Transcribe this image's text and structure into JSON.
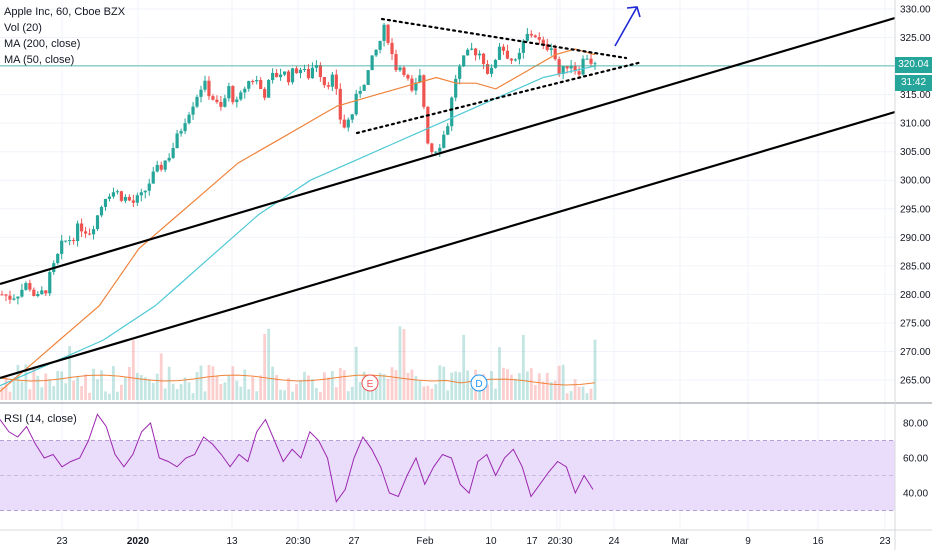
{
  "legend": {
    "title": "Apple Inc, 60, Cboe BZX",
    "vol": "Vol (20)",
    "ma200": "MA (200, close)",
    "ma50": "MA (50, close)",
    "rsi": "RSI (14, close)"
  },
  "colors": {
    "up": "#26a69a",
    "down": "#ef5350",
    "ma50": "#f0833a",
    "ma200": "#4ec9d4",
    "rsi": "#9c27b0",
    "rsi_band": "#e9ddfb",
    "price_line": "#26a69a",
    "trendline": "#000000",
    "arrow": "#1f29d6"
  },
  "price_badge": "320.04",
  "time_badge": "31:42",
  "events": [
    {
      "label": "E",
      "color": "#ef5350"
    },
    {
      "label": "D",
      "color": "#2196f3"
    }
  ],
  "chart_data": [
    {
      "type": "candlestick",
      "title": "Apple Inc, 60, Cboe BZX",
      "x_ticks": [
        "23",
        "2020",
        "13",
        "20:30",
        "27",
        "Feb",
        "10",
        "17",
        "20:30",
        "24",
        "Mar",
        "9",
        "16",
        "23"
      ],
      "y_ticks": [
        330,
        325,
        320,
        315,
        310,
        305,
        300,
        295,
        290,
        285,
        280,
        275,
        270,
        265
      ],
      "ylim": [
        262,
        331
      ],
      "last_price": 320.04,
      "close_approx": [
        280,
        279.5,
        280.5,
        282,
        279,
        281,
        285,
        289,
        290,
        292,
        291,
        294,
        298,
        298,
        297,
        296,
        297,
        300,
        302,
        304,
        307,
        311,
        314,
        317,
        315,
        312,
        316,
        313,
        317,
        318,
        315,
        318,
        319,
        318,
        320,
        318,
        321,
        317,
        318,
        309,
        311,
        316,
        319,
        323,
        327,
        320,
        320,
        315,
        318,
        305,
        306,
        309,
        318,
        321,
        323,
        322,
        318,
        324,
        322,
        320,
        325,
        326,
        323,
        324,
        318,
        321,
        319,
        322,
        320
      ],
      "ma50_approx": [
        263,
        266,
        269,
        272,
        275,
        278,
        283,
        288,
        291,
        294,
        297,
        300,
        303,
        305,
        307,
        309,
        311,
        313,
        314,
        315,
        316,
        317,
        318,
        317,
        317,
        316,
        318,
        320,
        322,
        323,
        322
      ],
      "ma200_approx": [
        264,
        266,
        268,
        270,
        272,
        275,
        278,
        282,
        286,
        290,
        294,
        297,
        300,
        302,
        304,
        306,
        308,
        310,
        312,
        314,
        316,
        318,
        319,
        320
      ],
      "annotations": [
        "Symmetrical triangle",
        "Rising channel",
        "Upward arrow"
      ]
    },
    {
      "type": "line",
      "title": "RSI (14, close)",
      "y_ticks": [
        80,
        60,
        40
      ],
      "band": [
        30,
        70
      ],
      "values_approx": [
        82,
        75,
        72,
        78,
        68,
        60,
        62,
        55,
        58,
        60,
        70,
        85,
        78,
        62,
        55,
        62,
        75,
        80,
        60,
        58,
        55,
        60,
        62,
        72,
        68,
        62,
        55,
        62,
        58,
        75,
        82,
        70,
        58,
        65,
        60,
        75,
        70,
        60,
        35,
        42,
        60,
        72,
        65,
        55,
        40,
        38,
        50,
        60,
        45,
        55,
        62,
        60,
        45,
        40,
        58,
        62,
        50,
        60,
        65,
        55,
        38,
        45,
        52,
        58,
        55,
        40,
        50,
        42
      ]
    }
  ]
}
